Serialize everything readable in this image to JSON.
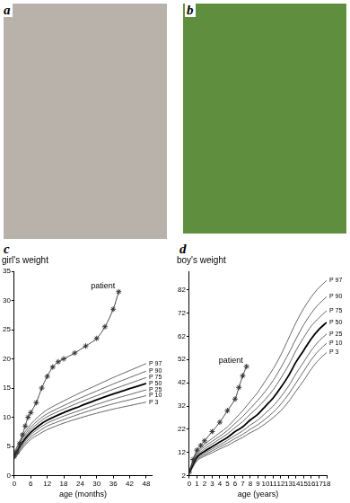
{
  "panel_labels": [
    "a",
    "b",
    "c",
    "d"
  ],
  "chart_data": [
    {
      "type": "line",
      "title": "girl's weight",
      "x_label": "age (months)",
      "xlim": [
        0,
        50
      ],
      "xticks": [
        0,
        6,
        12,
        18,
        24,
        30,
        36,
        42,
        48
      ],
      "ylim": [
        0,
        35
      ],
      "yticks": [
        0,
        5,
        10,
        15,
        20,
        25,
        30,
        35
      ],
      "grid": false,
      "series": [
        {
          "name": "patient",
          "color": "#333333",
          "marker": "star",
          "line_style": "solid",
          "x": [
            0,
            1,
            2,
            3,
            4,
            5,
            6,
            8,
            10,
            12,
            14,
            16,
            18,
            22,
            26,
            30,
            33,
            36,
            38
          ],
          "values": [
            3.3,
            4,
            5.5,
            7,
            8.5,
            10,
            10.8,
            12.5,
            15,
            17,
            18.6,
            19.5,
            20,
            21,
            22.2,
            23.5,
            25.5,
            28.5,
            31.5
          ]
        },
        {
          "name": "P 97",
          "color": "#555555",
          "line_style": "solid",
          "x": [
            0,
            3,
            6,
            9,
            12,
            18,
            24,
            30,
            36,
            42,
            48
          ],
          "values": [
            4.0,
            6.8,
            8.8,
            10.2,
            11.3,
            12.8,
            14.2,
            15.5,
            16.8,
            18.0,
            19.2
          ]
        },
        {
          "name": "P 90",
          "color": "#555555",
          "line_style": "solid",
          "x": [
            0,
            3,
            6,
            9,
            12,
            18,
            24,
            30,
            36,
            42,
            48
          ],
          "values": [
            3.8,
            6.4,
            8.3,
            9.6,
            10.6,
            12.0,
            13.3,
            14.5,
            15.7,
            16.8,
            17.9
          ]
        },
        {
          "name": "P 75",
          "color": "#555555",
          "line_style": "solid",
          "x": [
            0,
            3,
            6,
            9,
            12,
            18,
            24,
            30,
            36,
            42,
            48
          ],
          "values": [
            3.6,
            6.0,
            7.9,
            9.1,
            10.1,
            11.4,
            12.6,
            13.7,
            14.8,
            15.8,
            16.8
          ]
        },
        {
          "name": "P 50",
          "color": "#000000",
          "line_style": "thick",
          "x": [
            0,
            3,
            6,
            9,
            12,
            18,
            24,
            30,
            36,
            42,
            48
          ],
          "values": [
            3.4,
            5.7,
            7.4,
            8.6,
            9.5,
            10.8,
            11.9,
            13.0,
            14.0,
            14.9,
            15.8
          ]
        },
        {
          "name": "P 25",
          "color": "#555555",
          "line_style": "solid",
          "x": [
            0,
            3,
            6,
            9,
            12,
            18,
            24,
            30,
            36,
            42,
            48
          ],
          "values": [
            3.2,
            5.3,
            7.0,
            8.1,
            9.0,
            10.2,
            11.2,
            12.2,
            13.1,
            13.9,
            14.7
          ]
        },
        {
          "name": "P 10",
          "color": "#555555",
          "line_style": "solid",
          "x": [
            0,
            3,
            6,
            9,
            12,
            18,
            24,
            30,
            36,
            42,
            48
          ],
          "values": [
            3.0,
            5.0,
            6.6,
            7.6,
            8.5,
            9.6,
            10.6,
            11.5,
            12.3,
            13.0,
            13.7
          ]
        },
        {
          "name": "P 3",
          "color": "#555555",
          "line_style": "solid",
          "x": [
            0,
            3,
            6,
            9,
            12,
            18,
            24,
            30,
            36,
            42,
            48
          ],
          "values": [
            2.8,
            4.7,
            6.2,
            7.1,
            7.9,
            9.0,
            9.9,
            10.7,
            11.4,
            12.0,
            12.6
          ]
        }
      ]
    },
    {
      "type": "line",
      "title": "boy's weight",
      "x_label": "age (years)",
      "xlim": [
        0,
        18
      ],
      "xticks": [
        0,
        1,
        2,
        3,
        4,
        5,
        6,
        7,
        8,
        9,
        10,
        11,
        12,
        13,
        14,
        15,
        16,
        17,
        18
      ],
      "ylim": [
        2,
        90
      ],
      "yticks": [
        2,
        12,
        22,
        32,
        42,
        52,
        62,
        72,
        82
      ],
      "grid": false,
      "series": [
        {
          "name": "patient",
          "color": "#333333",
          "marker": "star",
          "line_style": "solid",
          "x": [
            0,
            0.5,
            1,
            1.5,
            2,
            3,
            4,
            5,
            6,
            6.5,
            7,
            7.5
          ],
          "values": [
            3.5,
            9,
            13,
            15,
            17,
            21,
            25,
            30,
            35,
            40,
            45,
            49
          ]
        },
        {
          "name": "P 97",
          "color": "#555555",
          "line_style": "solid",
          "x": [
            0,
            1,
            2,
            3,
            4,
            5,
            6,
            7,
            8,
            9,
            10,
            11,
            12,
            13,
            14,
            15,
            16,
            17,
            18
          ],
          "values": [
            4.3,
            12,
            15.5,
            18,
            20.5,
            23,
            26.5,
            30,
            34,
            38,
            43,
            48,
            54,
            61,
            68,
            74,
            79,
            83,
            86
          ]
        },
        {
          "name": "P 90",
          "color": "#555555",
          "line_style": "solid",
          "x": [
            0,
            1,
            2,
            3,
            4,
            5,
            6,
            7,
            8,
            9,
            10,
            11,
            12,
            13,
            14,
            15,
            16,
            17,
            18
          ],
          "values": [
            4.1,
            11.3,
            14.5,
            16.8,
            19,
            21.5,
            24.5,
            27.5,
            31,
            34.5,
            38.5,
            43,
            48.5,
            54.5,
            61,
            67,
            72,
            76,
            79
          ]
        },
        {
          "name": "P 75",
          "color": "#555555",
          "line_style": "solid",
          "x": [
            0,
            1,
            2,
            3,
            4,
            5,
            6,
            7,
            8,
            9,
            10,
            11,
            12,
            13,
            14,
            15,
            16,
            17,
            18
          ],
          "values": [
            3.8,
            10.7,
            13.5,
            15.7,
            17.8,
            20,
            22.7,
            25.3,
            28.5,
            31.5,
            35,
            39,
            44,
            49.5,
            56,
            61.5,
            66.5,
            70,
            73
          ]
        },
        {
          "name": "P 50",
          "color": "#000000",
          "line_style": "thick",
          "x": [
            0,
            1,
            2,
            3,
            4,
            5,
            6,
            7,
            8,
            9,
            10,
            11,
            12,
            13,
            14,
            15,
            16,
            17,
            18
          ],
          "values": [
            3.5,
            10,
            12.5,
            14.5,
            16.5,
            18.5,
            21,
            23,
            26,
            28.5,
            32,
            35.5,
            40,
            45,
            51,
            56,
            61,
            65,
            68
          ]
        },
        {
          "name": "P 25",
          "color": "#555555",
          "line_style": "solid",
          "x": [
            0,
            1,
            2,
            3,
            4,
            5,
            6,
            7,
            8,
            9,
            10,
            11,
            12,
            13,
            14,
            15,
            16,
            17,
            18
          ],
          "values": [
            3.2,
            9.4,
            11.7,
            13.5,
            15.3,
            17.2,
            19.3,
            21.3,
            23.8,
            26,
            29,
            32,
            36,
            40.5,
            46,
            51,
            56,
            60,
            63
          ]
        },
        {
          "name": "P 10",
          "color": "#555555",
          "line_style": "solid",
          "x": [
            0,
            1,
            2,
            3,
            4,
            5,
            6,
            7,
            8,
            9,
            10,
            11,
            12,
            13,
            14,
            15,
            16,
            17,
            18
          ],
          "values": [
            3.0,
            8.9,
            11,
            12.7,
            14.4,
            16.1,
            18,
            19.8,
            22,
            24,
            26.5,
            29.3,
            32.8,
            37,
            42,
            47,
            52,
            56,
            59
          ]
        },
        {
          "name": "P 3",
          "color": "#555555",
          "line_style": "solid",
          "x": [
            0,
            1,
            2,
            3,
            4,
            5,
            6,
            7,
            8,
            9,
            10,
            11,
            12,
            13,
            14,
            15,
            16,
            17,
            18
          ],
          "values": [
            2.8,
            8.4,
            10.4,
            11.9,
            13.5,
            15,
            16.8,
            18.5,
            20.5,
            22.2,
            24.5,
            27,
            30,
            33.8,
            38.5,
            43,
            48,
            52,
            55
          ]
        }
      ]
    }
  ]
}
